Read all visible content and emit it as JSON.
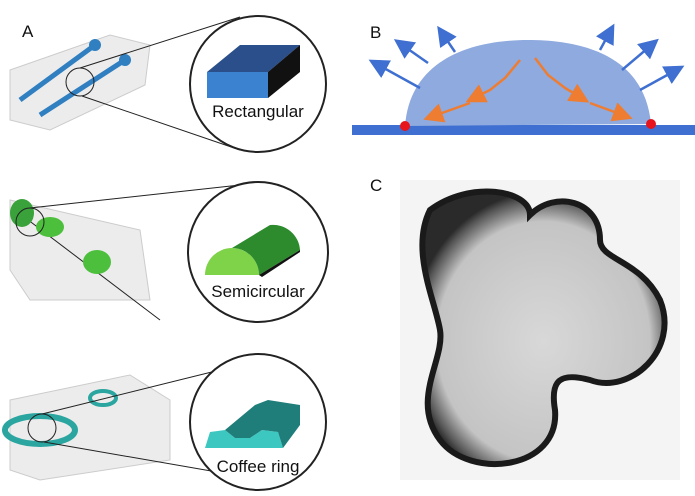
{
  "panels": {
    "A": {
      "label": "A",
      "shapes": [
        "Rectangular",
        "Semicircular",
        "Coffee ring"
      ]
    },
    "B": {
      "label": "B"
    },
    "C": {
      "label": "C"
    }
  }
}
